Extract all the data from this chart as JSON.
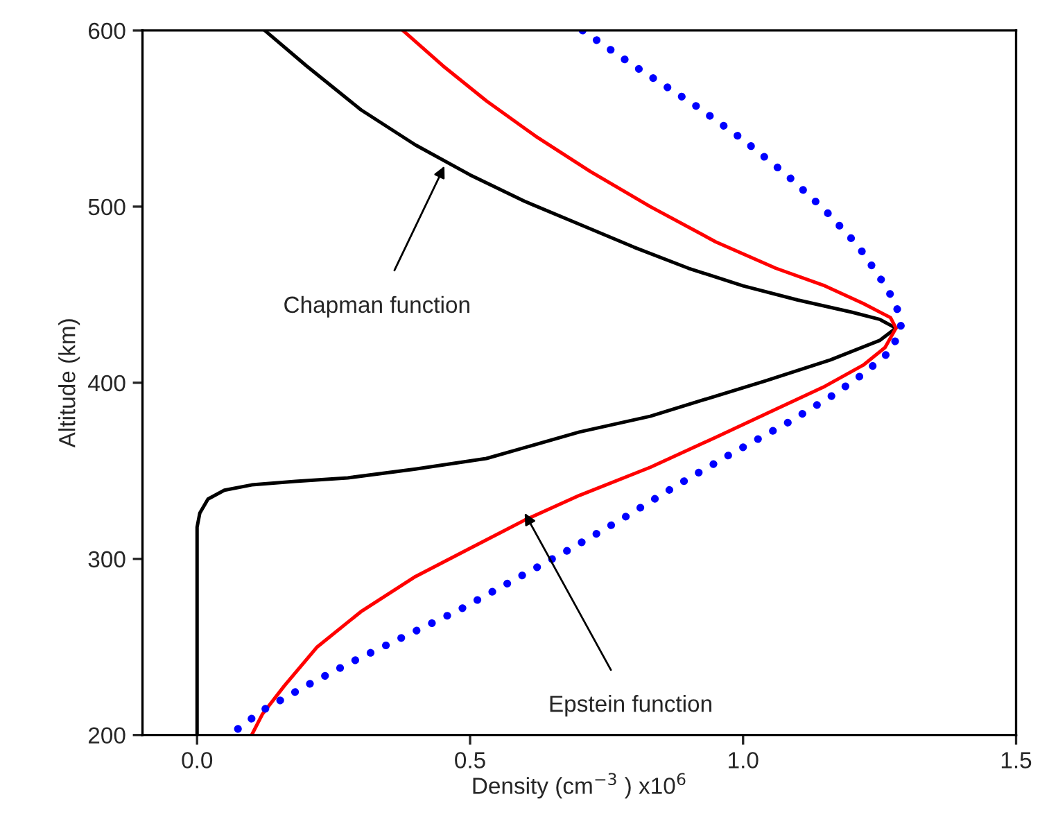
{
  "chart_data": {
    "type": "line",
    "xlabel": "Density (cm$^{−3}$ ) x10$^{6}$",
    "ylabel": "Altitude (km)",
    "xlim": [
      -0.1,
      1.5
    ],
    "xticks": [
      {
        "value": 0,
        "label": "0.0"
      },
      0.5,
      {
        "value": 1,
        "label": "1.0"
      },
      1.5
    ],
    "ylim": [
      200,
      600
    ],
    "yticks": [
      200,
      300,
      400,
      500,
      600
    ],
    "grid": false,
    "series": [
      {
        "color": "#000000",
        "line_style": "solid",
        "x": [
          0.124,
          0.2,
          0.3,
          0.4,
          0.5,
          0.6,
          0.7,
          0.8,
          0.9,
          1.0,
          1.1,
          1.2,
          1.25,
          1.28,
          1.25,
          1.16,
          1.04,
          0.83,
          0.7,
          0.53,
          0.4,
          0.276,
          0.18,
          0.1,
          0.05,
          0.02,
          0.005,
          0,
          0
        ],
        "values": [
          600,
          580,
          555,
          535,
          518,
          503,
          490,
          477,
          465,
          455,
          447,
          440,
          436,
          431,
          424,
          413,
          401,
          381,
          372,
          357,
          351,
          346,
          344,
          342,
          339,
          334,
          326,
          318,
          200
        ]
      },
      {
        "color": "#ff0000",
        "line_style": "solid",
        "x": [
          0.377,
          0.45,
          0.53,
          0.62,
          0.72,
          0.83,
          0.95,
          1.06,
          1.15,
          1.22,
          1.27,
          1.28,
          1.26,
          1.22,
          1.15,
          1.06,
          0.95,
          0.83,
          0.7,
          0.6,
          0.5,
          0.4,
          0.3,
          0.22,
          0.16,
          0.12,
          0.1
        ],
        "values": [
          600,
          580,
          560,
          540,
          520,
          500,
          480,
          465,
          455,
          445,
          437,
          431,
          420,
          410,
          398,
          385,
          369,
          352,
          336,
          322,
          306,
          290,
          270,
          250,
          228,
          212,
          200
        ]
      },
      {
        "color": "#0000ff",
        "line_style": "dotted",
        "x": [
          0.706,
          0.8,
          0.91,
          1.0,
          1.08,
          1.15,
          1.21,
          1.25,
          1.28,
          1.29,
          1.27,
          1.22,
          1.16,
          1.08,
          0.98,
          0.88,
          0.78,
          0.68,
          0.58,
          0.48,
          0.38,
          0.28,
          0.2,
          0.12,
          0.06
        ],
        "values": [
          600,
          580,
          558,
          538,
          518,
          498,
          478,
          460,
          445,
          431,
          418,
          405,
          392,
          377,
          360,
          342,
          323,
          305,
          288,
          271,
          256,
          241,
          228,
          214,
          200
        ]
      }
    ],
    "annotations": [
      {
        "text": "Chapman function",
        "x": 0.453,
        "y": 523
      },
      {
        "text": "Epstein function",
        "x": 0.6,
        "y": 326
      }
    ]
  }
}
